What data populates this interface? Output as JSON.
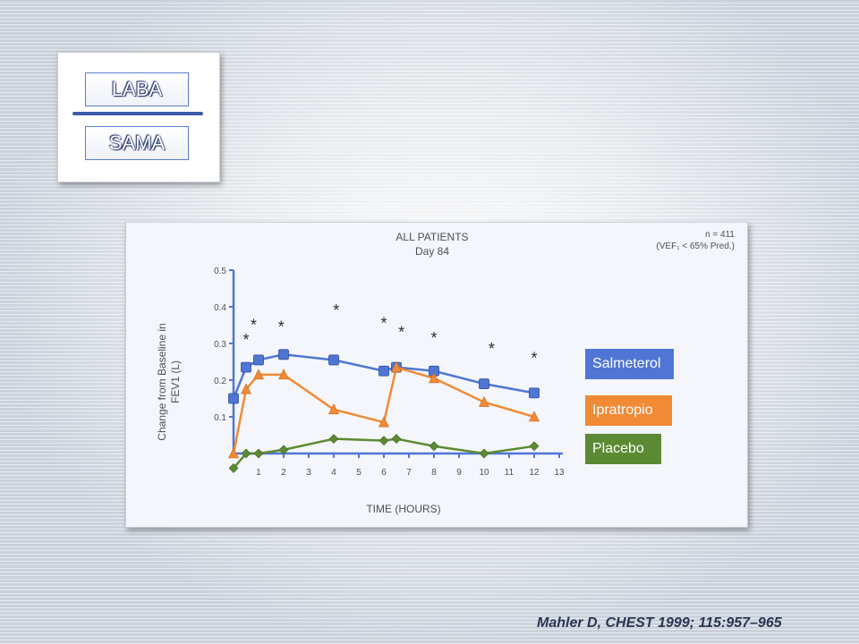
{
  "concepts": {
    "top_label": "LABA",
    "bottom_label": "SAMA"
  },
  "citation": "Mahler D, CHEST 1999; 115:957–965",
  "legend": {
    "salmeterol": "Salmeterol",
    "ipratropio": "Ipratropio",
    "placebo": "Placebo"
  },
  "colors": {
    "salmeterol": "#4f76d4",
    "ipratropio": "#f08a35",
    "placebo": "#5c8a32",
    "axis": "#4f76d4"
  },
  "chart_data": {
    "type": "line",
    "title": "ALL PATIENTS",
    "subtitle": "Day 84",
    "annotation_line1": "n = 411",
    "annotation_line2": "(VEF₁ < 65% Pred.)",
    "xlabel": "TIME (HOURS)",
    "ylabel_line1": "Change from Baseline in",
    "ylabel_line2": "FEV1 (L)",
    "xlim": [
      0,
      13
    ],
    "ylim": [
      0,
      0.5
    ],
    "x_ticks": [
      1,
      2,
      3,
      4,
      5,
      6,
      7,
      8,
      9,
      10,
      11,
      12,
      13
    ],
    "y_ticks": [
      0.1,
      0.2,
      0.3,
      0.4,
      0.5
    ],
    "y_tick_labels": [
      "0.1",
      "0.2",
      "0.3",
      "0.4",
      "0.5"
    ],
    "legend_position": "right",
    "series": [
      {
        "name": "Salmeterol",
        "marker": "square",
        "x": [
          0,
          0.5,
          1,
          2,
          4,
          6,
          6.5,
          8,
          10,
          12
        ],
        "y": [
          0.15,
          0.235,
          0.255,
          0.27,
          0.255,
          0.225,
          0.235,
          0.225,
          0.19,
          0.165
        ]
      },
      {
        "name": "Ipratropio",
        "marker": "triangle",
        "x": [
          0,
          0.5,
          1,
          2,
          4,
          6,
          6.5,
          8,
          10,
          12
        ],
        "y": [
          0.0,
          0.175,
          0.215,
          0.215,
          0.12,
          0.085,
          0.235,
          0.205,
          0.14,
          0.1
        ]
      },
      {
        "name": "Placebo",
        "marker": "diamond",
        "x": [
          0,
          0.5,
          1,
          2,
          4,
          6,
          6.5,
          8,
          10,
          12
        ],
        "y": [
          -0.04,
          0.0,
          0.0,
          0.01,
          0.04,
          0.035,
          0.04,
          0.02,
          0.0,
          0.02
        ]
      }
    ],
    "significance_markers": [
      {
        "x": 0.5,
        "y": 0.31,
        "label": "*"
      },
      {
        "x": 0.8,
        "y": 0.35,
        "label": "*"
      },
      {
        "x": 1.9,
        "y": 0.345,
        "label": "*"
      },
      {
        "x": 4.1,
        "y": 0.39,
        "label": "*"
      },
      {
        "x": 6.0,
        "y": 0.355,
        "label": "*"
      },
      {
        "x": 6.7,
        "y": 0.33,
        "label": "*"
      },
      {
        "x": 8.0,
        "y": 0.315,
        "label": "*"
      },
      {
        "x": 10.3,
        "y": 0.285,
        "label": "*"
      },
      {
        "x": 12.0,
        "y": 0.26,
        "label": "*"
      }
    ]
  }
}
